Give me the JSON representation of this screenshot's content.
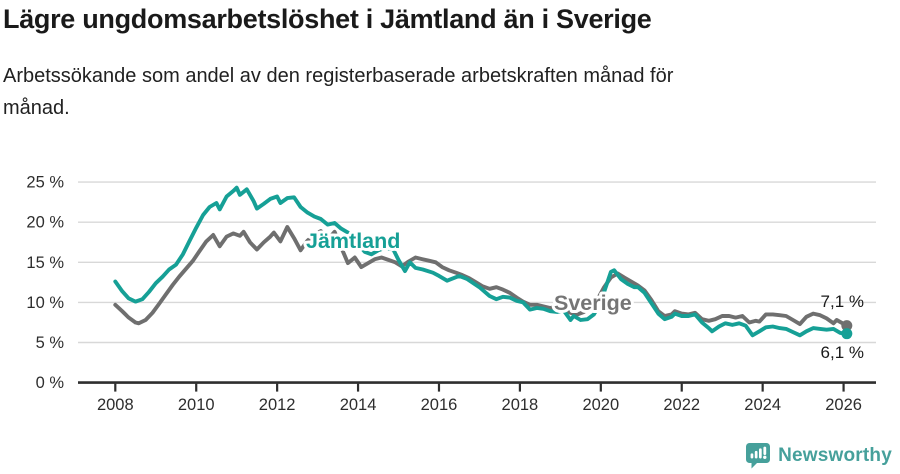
{
  "header": {
    "title": "Lägre ungdomsarbetslöshet i Jämtland än i Sverige",
    "subtitle": "Arbetssökande som andel av den registerbaserade arbetskraften månad för\nmånad."
  },
  "footer": {
    "brand": "Newsworthy"
  },
  "colors": {
    "accent_teal": "#16a096",
    "line_gray": "#6f6f6f",
    "label_gray": "#757575",
    "axis": "#2e2e2e",
    "grid": "#d8d8d8",
    "annotation": "#1a1a1a",
    "brand": "#46a09b"
  },
  "chart_data": {
    "type": "line",
    "title": "Lägre ungdomsarbetslöshet i Jämtland än i Sverige",
    "subtitle": "Arbetssökande som andel av den registerbaserade arbetskraften månad för månad.",
    "xlabel": "",
    "ylabel": "",
    "unit": "%",
    "grid": true,
    "legend_position": "inline",
    "xlim": [
      2007.1,
      2026.8
    ],
    "ylim": [
      0,
      25
    ],
    "x_ticks": [
      2008,
      2010,
      2012,
      2014,
      2016,
      2018,
      2020,
      2022,
      2024,
      2026
    ],
    "x_tick_labels": [
      "2008",
      "2010",
      "2012",
      "2014",
      "2016",
      "2018",
      "2020",
      "2022",
      "2024",
      "2026"
    ],
    "y_ticks": [
      0,
      5,
      10,
      15,
      20,
      25
    ],
    "y_tick_labels": [
      "0 %",
      "5 %",
      "10 %",
      "15 %",
      "20 %",
      "25 %"
    ],
    "series": [
      {
        "name": "Sverige",
        "color": "#6f6f6f",
        "label_color": "#757575",
        "end_label": "7,1 %",
        "end_value": 7.1,
        "points": [
          [
            2008.0,
            9.7
          ],
          [
            2008.17,
            8.9
          ],
          [
            2008.33,
            8.1
          ],
          [
            2008.5,
            7.5
          ],
          [
            2008.58,
            7.4
          ],
          [
            2008.75,
            7.8
          ],
          [
            2008.92,
            8.7
          ],
          [
            2009.08,
            9.8
          ],
          [
            2009.25,
            11.0
          ],
          [
            2009.42,
            12.2
          ],
          [
            2009.58,
            13.2
          ],
          [
            2009.75,
            14.2
          ],
          [
            2009.92,
            15.2
          ],
          [
            2010.08,
            16.4
          ],
          [
            2010.25,
            17.6
          ],
          [
            2010.42,
            18.4
          ],
          [
            2010.58,
            17.0
          ],
          [
            2010.75,
            18.2
          ],
          [
            2010.92,
            18.6
          ],
          [
            2011.08,
            18.3
          ],
          [
            2011.17,
            18.8
          ],
          [
            2011.33,
            17.5
          ],
          [
            2011.5,
            16.6
          ],
          [
            2011.67,
            17.5
          ],
          [
            2011.83,
            18.2
          ],
          [
            2011.92,
            18.7
          ],
          [
            2012.08,
            17.6
          ],
          [
            2012.25,
            19.4
          ],
          [
            2012.42,
            18.0
          ],
          [
            2012.58,
            16.5
          ],
          [
            2012.75,
            17.7
          ],
          [
            2012.92,
            18.4
          ],
          [
            2013.08,
            18.9
          ],
          [
            2013.25,
            17.8
          ],
          [
            2013.42,
            18.8
          ],
          [
            2013.58,
            16.9
          ],
          [
            2013.75,
            14.9
          ],
          [
            2013.92,
            15.6
          ],
          [
            2014.08,
            14.4
          ],
          [
            2014.25,
            14.9
          ],
          [
            2014.42,
            15.4
          ],
          [
            2014.58,
            15.6
          ],
          [
            2014.75,
            15.3
          ],
          [
            2014.92,
            15.0
          ],
          [
            2015.08,
            14.5
          ],
          [
            2015.25,
            15.1
          ],
          [
            2015.42,
            15.6
          ],
          [
            2015.58,
            15.4
          ],
          [
            2015.75,
            15.2
          ],
          [
            2015.92,
            15.0
          ],
          [
            2016.08,
            14.4
          ],
          [
            2016.25,
            14.0
          ],
          [
            2016.42,
            13.7
          ],
          [
            2016.58,
            13.4
          ],
          [
            2016.75,
            13.0
          ],
          [
            2016.92,
            12.5
          ],
          [
            2017.08,
            12.0
          ],
          [
            2017.25,
            11.7
          ],
          [
            2017.42,
            11.9
          ],
          [
            2017.58,
            11.6
          ],
          [
            2017.75,
            11.2
          ],
          [
            2017.92,
            10.6
          ],
          [
            2018.08,
            10.1
          ],
          [
            2018.25,
            9.7
          ],
          [
            2018.42,
            9.7
          ],
          [
            2018.58,
            9.5
          ],
          [
            2018.75,
            9.3
          ],
          [
            2018.92,
            9.5
          ],
          [
            2019.08,
            9.1
          ],
          [
            2019.25,
            8.7
          ],
          [
            2019.42,
            8.5
          ],
          [
            2019.58,
            8.8
          ],
          [
            2019.75,
            9.4
          ],
          [
            2019.92,
            10.4
          ],
          [
            2020.08,
            11.9
          ],
          [
            2020.25,
            13.1
          ],
          [
            2020.42,
            13.6
          ],
          [
            2020.58,
            13.1
          ],
          [
            2020.75,
            12.6
          ],
          [
            2020.92,
            12.1
          ],
          [
            2021.08,
            11.5
          ],
          [
            2021.25,
            10.3
          ],
          [
            2021.42,
            8.9
          ],
          [
            2021.58,
            8.3
          ],
          [
            2021.75,
            8.5
          ],
          [
            2021.83,
            8.9
          ],
          [
            2022.0,
            8.6
          ],
          [
            2022.17,
            8.5
          ],
          [
            2022.33,
            8.7
          ],
          [
            2022.5,
            7.9
          ],
          [
            2022.67,
            7.7
          ],
          [
            2022.83,
            7.9
          ],
          [
            2023.0,
            8.3
          ],
          [
            2023.17,
            8.3
          ],
          [
            2023.33,
            8.1
          ],
          [
            2023.5,
            8.3
          ],
          [
            2023.67,
            7.5
          ],
          [
            2023.83,
            7.7
          ],
          [
            2023.92,
            7.6
          ],
          [
            2024.08,
            8.5
          ],
          [
            2024.25,
            8.5
          ],
          [
            2024.42,
            8.4
          ],
          [
            2024.58,
            8.3
          ],
          [
            2024.75,
            7.8
          ],
          [
            2024.92,
            7.3
          ],
          [
            2025.08,
            8.2
          ],
          [
            2025.25,
            8.6
          ],
          [
            2025.42,
            8.4
          ],
          [
            2025.58,
            8.0
          ],
          [
            2025.75,
            7.4
          ],
          [
            2025.83,
            7.8
          ],
          [
            2026.08,
            7.1
          ]
        ]
      },
      {
        "name": "Jämtland",
        "color": "#16a096",
        "label_color": "#16a096",
        "end_label": "6,1 %",
        "end_value": 6.1,
        "points": [
          [
            2008.0,
            12.6
          ],
          [
            2008.17,
            11.4
          ],
          [
            2008.33,
            10.5
          ],
          [
            2008.5,
            10.1
          ],
          [
            2008.67,
            10.4
          ],
          [
            2008.83,
            11.3
          ],
          [
            2009.0,
            12.4
          ],
          [
            2009.17,
            13.2
          ],
          [
            2009.33,
            14.1
          ],
          [
            2009.5,
            14.7
          ],
          [
            2009.67,
            16.0
          ],
          [
            2009.83,
            17.6
          ],
          [
            2010.0,
            19.3
          ],
          [
            2010.17,
            20.9
          ],
          [
            2010.33,
            21.9
          ],
          [
            2010.5,
            22.4
          ],
          [
            2010.58,
            21.6
          ],
          [
            2010.75,
            23.2
          ],
          [
            2010.92,
            23.9
          ],
          [
            2011.0,
            24.3
          ],
          [
            2011.08,
            23.4
          ],
          [
            2011.25,
            24.1
          ],
          [
            2011.42,
            22.6
          ],
          [
            2011.5,
            21.7
          ],
          [
            2011.67,
            22.3
          ],
          [
            2011.83,
            22.9
          ],
          [
            2012.0,
            23.2
          ],
          [
            2012.08,
            22.4
          ],
          [
            2012.25,
            23.0
          ],
          [
            2012.42,
            23.1
          ],
          [
            2012.58,
            21.9
          ],
          [
            2012.75,
            21.2
          ],
          [
            2012.92,
            20.7
          ],
          [
            2013.08,
            20.4
          ],
          [
            2013.25,
            19.7
          ],
          [
            2013.42,
            19.9
          ],
          [
            2013.58,
            19.2
          ],
          [
            2013.75,
            18.7
          ],
          [
            2013.92,
            18.3
          ],
          [
            2014.08,
            16.8
          ],
          [
            2014.17,
            16.3
          ],
          [
            2014.33,
            16.0
          ],
          [
            2014.5,
            16.5
          ],
          [
            2014.67,
            16.8
          ],
          [
            2014.87,
            16.6
          ],
          [
            2015.0,
            15.3
          ],
          [
            2015.16,
            13.9
          ],
          [
            2015.28,
            15.0
          ],
          [
            2015.42,
            14.3
          ],
          [
            2015.6,
            14.1
          ],
          [
            2015.85,
            13.7
          ],
          [
            2016.0,
            13.3
          ],
          [
            2016.2,
            12.7
          ],
          [
            2016.35,
            13.0
          ],
          [
            2016.5,
            13.3
          ],
          [
            2016.7,
            12.9
          ],
          [
            2017.0,
            11.9
          ],
          [
            2017.25,
            10.8
          ],
          [
            2017.42,
            10.4
          ],
          [
            2017.58,
            10.7
          ],
          [
            2017.75,
            10.6
          ],
          [
            2017.92,
            10.2
          ],
          [
            2018.08,
            10.0
          ],
          [
            2018.25,
            9.1
          ],
          [
            2018.42,
            9.3
          ],
          [
            2018.58,
            9.2
          ],
          [
            2018.75,
            8.9
          ],
          [
            2018.92,
            8.8
          ],
          [
            2019.08,
            9.0
          ],
          [
            2019.25,
            7.8
          ],
          [
            2019.33,
            8.3
          ],
          [
            2019.5,
            7.8
          ],
          [
            2019.67,
            7.9
          ],
          [
            2019.83,
            8.5
          ],
          [
            2019.92,
            9.3
          ],
          [
            2020.08,
            11.3
          ],
          [
            2020.25,
            13.8
          ],
          [
            2020.33,
            14.0
          ],
          [
            2020.5,
            12.9
          ],
          [
            2020.67,
            12.3
          ],
          [
            2020.83,
            11.9
          ],
          [
            2020.92,
            11.9
          ],
          [
            2021.08,
            11.2
          ],
          [
            2021.25,
            9.9
          ],
          [
            2021.42,
            8.6
          ],
          [
            2021.58,
            7.9
          ],
          [
            2021.75,
            8.2
          ],
          [
            2021.83,
            8.6
          ],
          [
            2022.0,
            8.3
          ],
          [
            2022.17,
            8.3
          ],
          [
            2022.33,
            8.5
          ],
          [
            2022.5,
            7.5
          ],
          [
            2022.67,
            6.8
          ],
          [
            2022.75,
            6.4
          ],
          [
            2022.92,
            7.0
          ],
          [
            2023.08,
            7.4
          ],
          [
            2023.25,
            7.2
          ],
          [
            2023.42,
            7.4
          ],
          [
            2023.58,
            7.1
          ],
          [
            2023.75,
            5.9
          ],
          [
            2023.92,
            6.4
          ],
          [
            2024.08,
            6.9
          ],
          [
            2024.25,
            7.0
          ],
          [
            2024.42,
            6.8
          ],
          [
            2024.58,
            6.7
          ],
          [
            2024.75,
            6.3
          ],
          [
            2024.92,
            5.9
          ],
          [
            2025.08,
            6.4
          ],
          [
            2025.25,
            6.8
          ],
          [
            2025.42,
            6.7
          ],
          [
            2025.58,
            6.6
          ],
          [
            2025.75,
            6.7
          ],
          [
            2025.92,
            6.2
          ],
          [
            2026.08,
            6.1
          ]
        ]
      }
    ]
  }
}
